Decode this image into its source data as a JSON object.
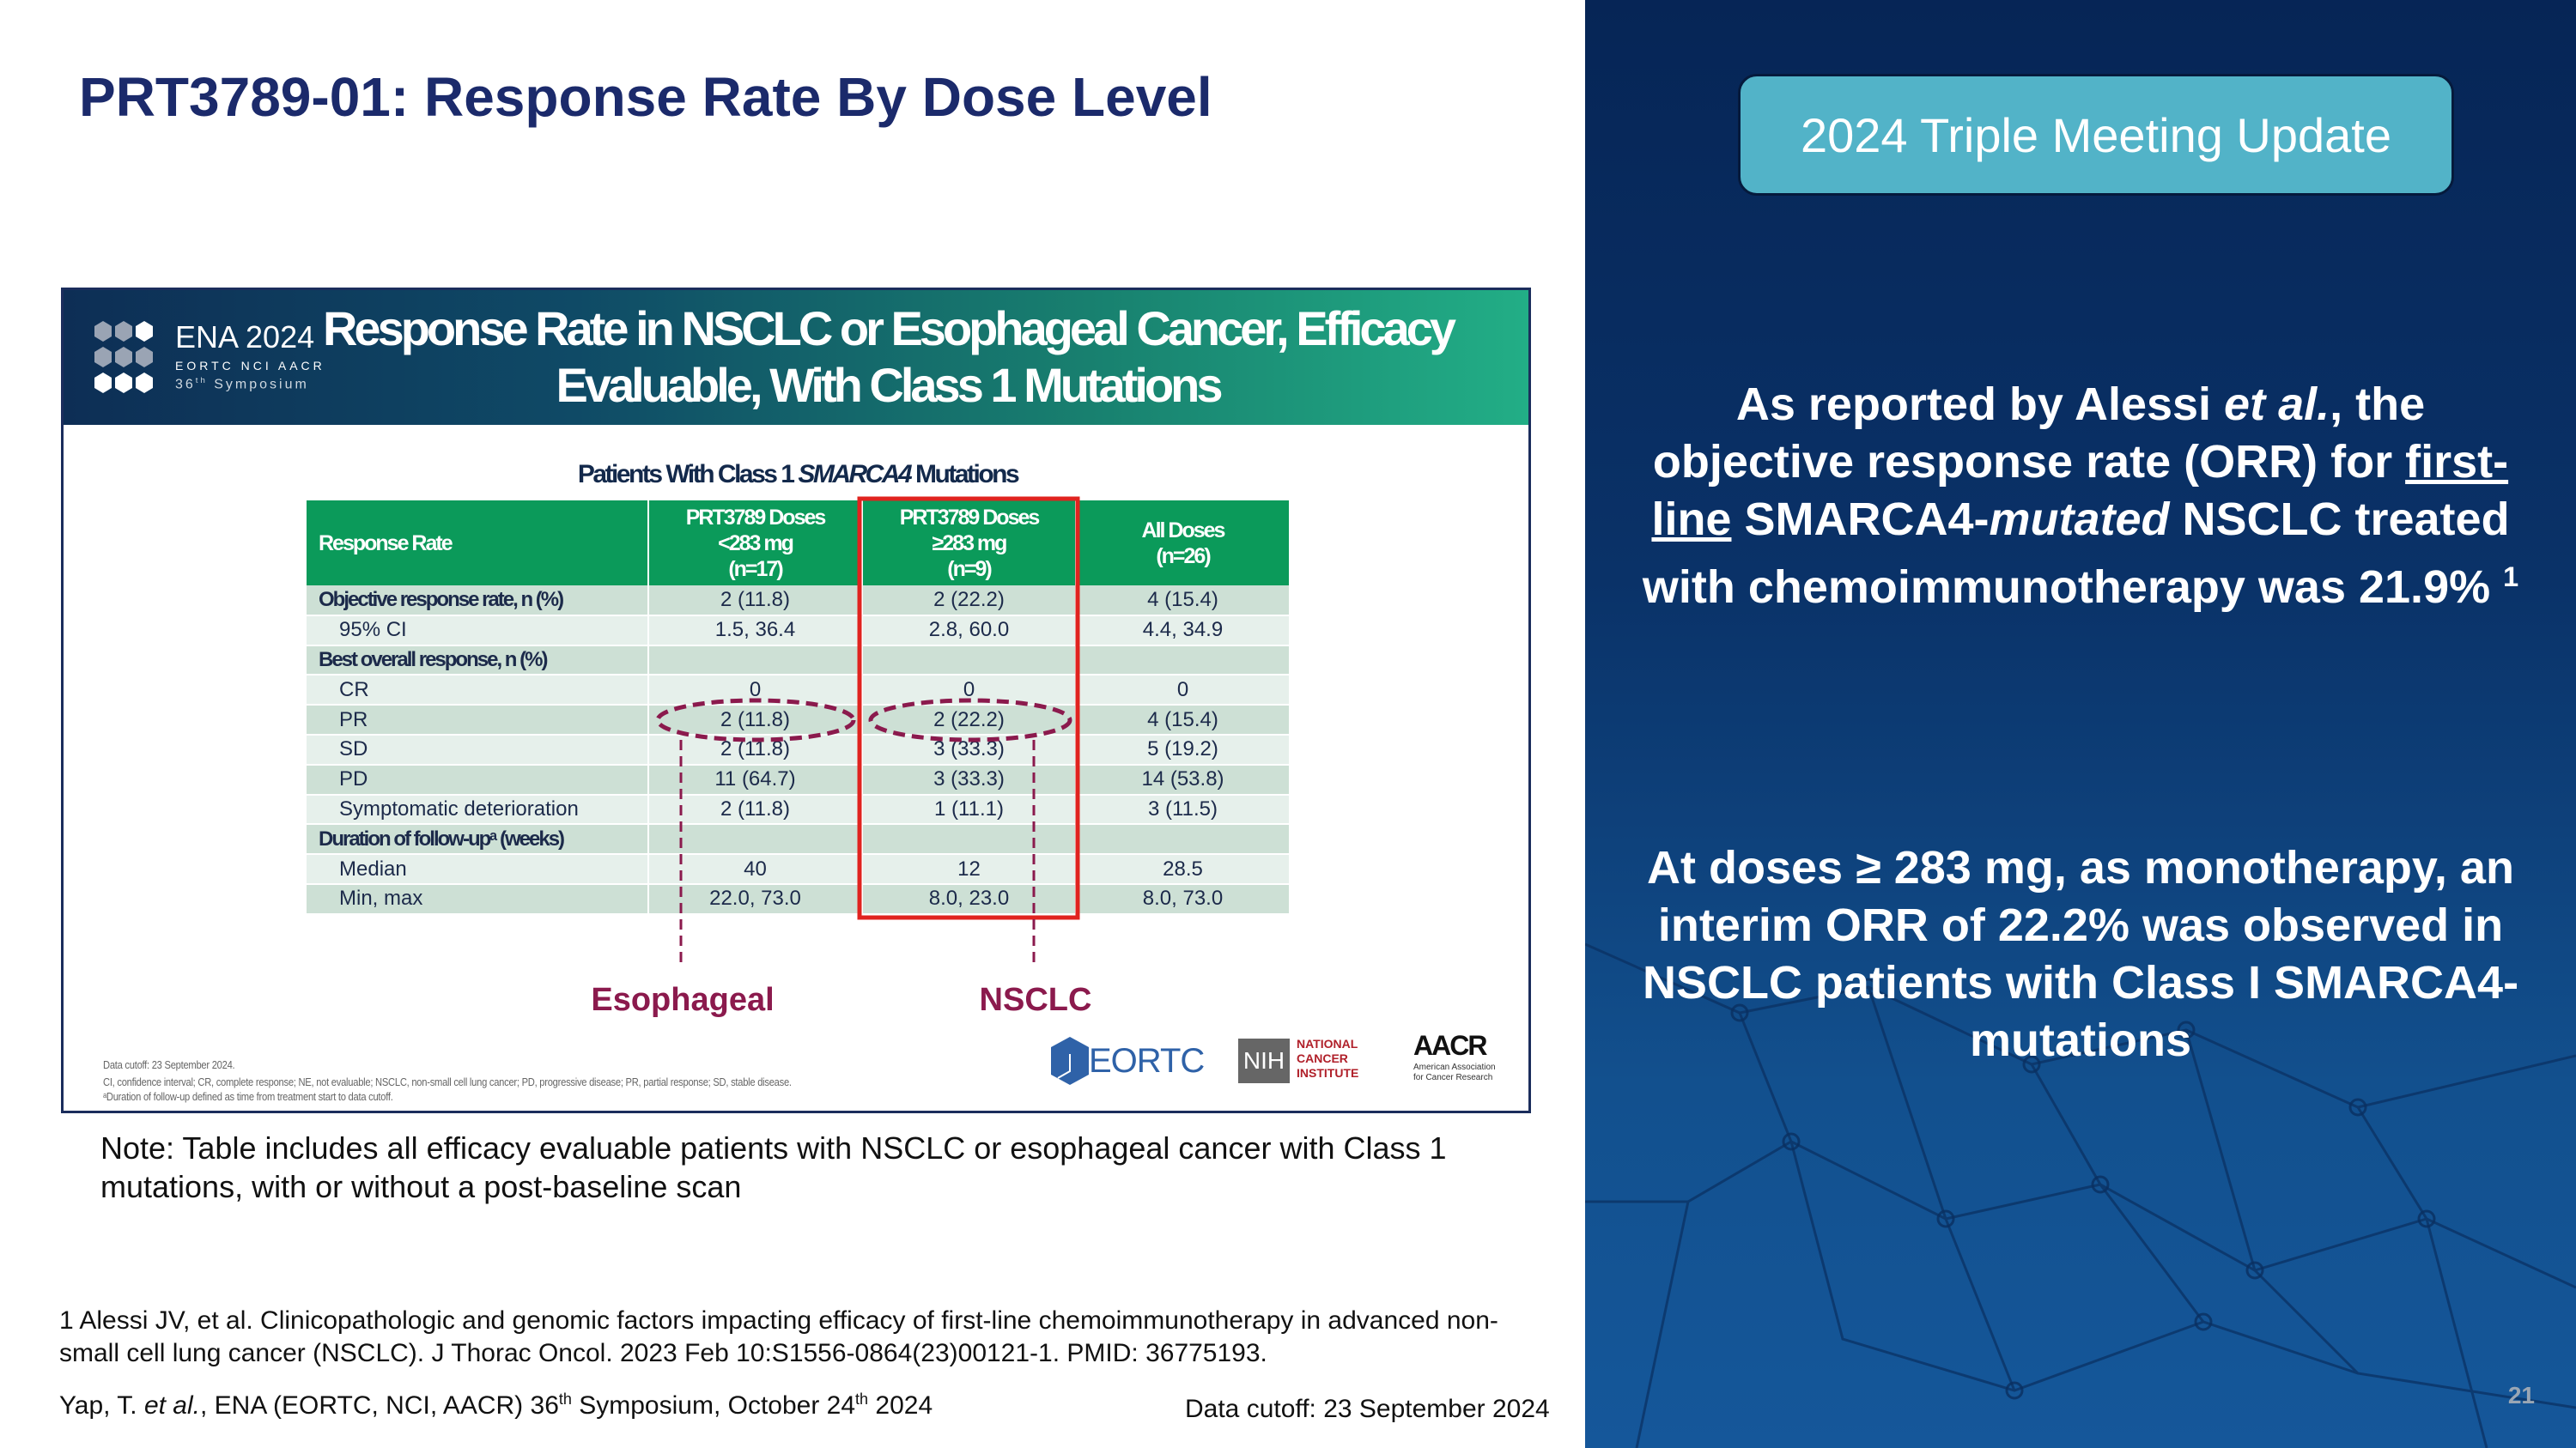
{
  "slide": {
    "title": "PRT3789-01: Response Rate By Dose Level",
    "page_number": "21"
  },
  "right_panel": {
    "tag": "2024 Triple Meeting Update",
    "para1": {
      "pre": "As reported by Alessi ",
      "italic1": "et al.",
      "mid": ", the objective response rate (ORR) for ",
      "underline": "first-line",
      "mid2": " SMARCA4-",
      "italic2": "mutated",
      "post": " NSCLC treated with chemoimmunotherapy was 21.9% ",
      "superscript": "1"
    },
    "para2": "At doses ≥ 283 mg, as monotherapy, an interim ORR of 22.2% was observed in NSCLC patients with Class I SMARCA4-mutations"
  },
  "embedded_slide": {
    "logo": {
      "title": "ENA 2024",
      "line1": "EORTC  NCI  AACR",
      "line2_pre": "36",
      "line2_sup": "th",
      "line2_post": " Symposium"
    },
    "banner_title": "Response Rate in NSCLC or Esophageal Cancer, Efficacy Evaluable, With Class 1 Mutations",
    "subtitle_pre": "Patients With Class 1 ",
    "subtitle_italic": "SMARCA4",
    "subtitle_post": " Mutations",
    "table": {
      "headers": [
        "Response Rate",
        "PRT3789 Doses\n<283 mg\n(n=17)",
        "PRT3789 Doses\n≥283 mg\n(n=9)",
        "All Doses\n(n=26)"
      ],
      "rows": [
        {
          "label": "Objective response rate, n (%)",
          "style": "bold",
          "values": [
            "2 (11.8)",
            "2 (22.2)",
            "4 (15.4)"
          ]
        },
        {
          "label": "95% CI",
          "style": "ind",
          "values": [
            "1.5, 36.4",
            "2.8, 60.0",
            "4.4, 34.9"
          ]
        },
        {
          "label": "Best overall response, n (%)",
          "style": "bold",
          "values": [
            "",
            "",
            ""
          ]
        },
        {
          "label": "CR",
          "style": "ind",
          "values": [
            "0",
            "0",
            "0"
          ]
        },
        {
          "label": "PR",
          "style": "ind",
          "values": [
            "2 (11.8)",
            "2 (22.2)",
            "4 (15.4)"
          ]
        },
        {
          "label": "SD",
          "style": "ind",
          "values": [
            "2 (11.8)",
            "3 (33.3)",
            "5 (19.2)"
          ]
        },
        {
          "label": "PD",
          "style": "ind",
          "values": [
            "11 (64.7)",
            "3 (33.3)",
            "14 (53.8)"
          ]
        },
        {
          "label": "Symptomatic deterioration",
          "style": "ind",
          "values": [
            "2 (11.8)",
            "1 (11.1)",
            "3 (11.5)"
          ]
        },
        {
          "label": "Duration of follow-upᵃ (weeks)",
          "style": "bold",
          "values": [
            "",
            "",
            ""
          ]
        },
        {
          "label": "Median",
          "style": "ind",
          "values": [
            "40",
            "12",
            "28.5"
          ]
        },
        {
          "label": "Min, max",
          "style": "ind",
          "values": [
            "22.0, 73.0",
            "8.0, 23.0",
            "8.0, 73.0"
          ]
        }
      ]
    },
    "annotations": {
      "esophageal": "Esophageal",
      "nsclc": "NSCLC",
      "highlight_color": "#e0231f",
      "circle_color": "#8b1a4d"
    },
    "fine_print": [
      "Data cutoff: 23 September 2024.",
      "CI, confidence interval; CR, complete response; NE, not evaluable; NSCLC, non-small cell lung cancer; PD, progressive disease; PR, partial response; SD, stable disease.",
      "ᵃDuration of follow-up defined as time from treatment start to data cutoff."
    ],
    "sponsor_logos": {
      "eortc": "EORTC",
      "nih": "NIH",
      "nci": "NATIONAL\nCANCER\nINSTITUTE",
      "aacr": "AACR",
      "aacr_sub": "American Association\nfor Cancer Research"
    }
  },
  "note": "Note: Table includes all efficacy evaluable patients with NSCLC or esophageal cancer with Class 1 mutations, with or without a post-baseline scan",
  "footer": {
    "reference": "1 Alessi JV, et al. Clinicopathologic and genomic factors impacting efficacy of first-line chemoimmunotherapy in advanced non-small cell lung cancer (NSCLC). J Thorac Oncol. 2023 Feb 10:S1556-0864(23)00121-1. PMID: 36775193.",
    "citation_pre": "Yap, T. ",
    "citation_italic": "et al.",
    "citation_mid": ", ENA (EORTC, NCI, AACR) 36",
    "citation_sup1": "th",
    "citation_mid2": " Symposium, October 24",
    "citation_sup2": "th",
    "citation_post": " 2024",
    "data_cutoff": "Data cutoff: 23 September 2024"
  }
}
